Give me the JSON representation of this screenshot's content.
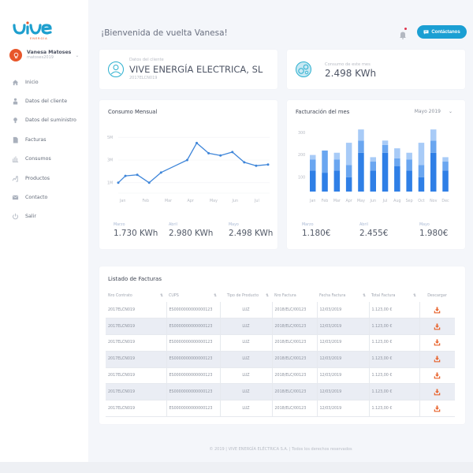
{
  "brand": {
    "name": "vive",
    "tagline": "ENERGÍA",
    "primary_color": "#1b9fd3",
    "accent_color": "#e8562a"
  },
  "user": {
    "name": "Vanesa Matoses",
    "handle": "matoses2019"
  },
  "sidebar": {
    "items": [
      {
        "label": "Inicio",
        "icon": "home-icon"
      },
      {
        "label": "Datos del cliente",
        "icon": "user-icon"
      },
      {
        "label": "Datos del suministro",
        "icon": "lightbulb-icon"
      },
      {
        "label": "Facturas",
        "icon": "document-icon"
      },
      {
        "label": "Consumos",
        "icon": "bar-chart-icon"
      },
      {
        "label": "Productos",
        "icon": "products-icon"
      },
      {
        "label": "Contacto",
        "icon": "mail-icon"
      },
      {
        "label": "Salir",
        "icon": "power-icon"
      }
    ]
  },
  "header": {
    "welcome": "¡Bienvenida de vuelta Vanesa!",
    "contact_button": "Contáctanos",
    "notifications": "bell-icon"
  },
  "client_card": {
    "label": "Datos del cliente",
    "name": "VIVE ENERGÍA ELECTRICA, SL",
    "contract": "2017ELCN019"
  },
  "consumption_card": {
    "label": "Consumo de este mes",
    "value": "2.498 KWh"
  },
  "monthly_consumption": {
    "title": "Consumo Mensual",
    "stats": [
      {
        "label": "Marzo",
        "value": "1.730 KWh"
      },
      {
        "label": "Abril",
        "value": "2.980 KWh"
      },
      {
        "label": "Mayo",
        "value": "2.498 KWh"
      }
    ]
  },
  "monthly_billing": {
    "title": "Facturación del mes",
    "period": "Mayo 2019",
    "stats": [
      {
        "label": "Marzo",
        "value": "1.180€"
      },
      {
        "label": "Abril",
        "value": "2.455€"
      },
      {
        "label": "Mayo",
        "value": "1.980€"
      }
    ]
  },
  "chart_data": [
    {
      "type": "line",
      "title": "Consumo Mensual",
      "xlabel": "",
      "ylabel": "",
      "x_tick_labels": [
        "Jan",
        "Feb",
        "Mar",
        "Apr",
        "May",
        "Jun",
        "Jul"
      ],
      "y_tick_labels": [
        "1M",
        "3M",
        "5M"
      ],
      "ylim": [
        0.5,
        5.5
      ],
      "grid": true,
      "color": "#3f86d9",
      "x": [
        0,
        0.3,
        0.8,
        1.3,
        1.8,
        2.4,
        2.9,
        3.3,
        3.8,
        4.3,
        4.8,
        5.3,
        5.8,
        6.3
      ],
      "values": [
        1.0,
        1.6,
        1.7,
        1.0,
        1.9,
        2.5,
        3.0,
        4.5,
        3.6,
        3.4,
        3.7,
        2.8,
        2.5,
        2.6
      ],
      "markers": [
        true,
        true,
        true,
        true,
        true,
        false,
        true,
        true,
        true,
        true,
        true,
        true,
        true,
        true
      ]
    },
    {
      "type": "bar",
      "stacked": true,
      "title": "Facturación del mes",
      "categories": [
        "Jan",
        "Feb",
        "Mar",
        "Apr",
        "May",
        "Jun",
        "Jul",
        "Aug",
        "Sep",
        "Oct",
        "Nov",
        "Dec"
      ],
      "y_tick_labels": [
        "100",
        "200",
        "300"
      ],
      "ylim": [
        35,
        330
      ],
      "series": [
        {
          "name": "base",
          "color": "#2f7fe6",
          "values": [
            130,
            120,
            130,
            100,
            210,
            130,
            210,
            150,
            130,
            100,
            210,
            130
          ]
        },
        {
          "name": "mid",
          "color": "#6aa6f0",
          "values": [
            50,
            100,
            50,
            55,
            55,
            40,
            35,
            35,
            50,
            55,
            55,
            40
          ]
        },
        {
          "name": "top",
          "color": "#a8cbf7",
          "values": [
            20,
            0,
            30,
            100,
            50,
            20,
            20,
            45,
            30,
            100,
            50,
            20
          ]
        }
      ]
    }
  ],
  "invoices": {
    "title": "Listado de Facturas",
    "columns": [
      {
        "label": "Nro Contrato",
        "sortable": true
      },
      {
        "label": "CUPS",
        "sortable": true
      },
      {
        "label": "Tipo de Producto",
        "sortable": true
      },
      {
        "label": "Nro Factura",
        "sortable": false
      },
      {
        "label": "Fecha Factura",
        "sortable": true
      },
      {
        "label": "Total Factura",
        "sortable": true
      },
      {
        "label": "Descargar",
        "sortable": false
      }
    ],
    "sort_glyph": "⇅",
    "rows": [
      {
        "contract": "2017ELCN019",
        "cups": "ES0000000000000123",
        "product": "LUZ",
        "invoice": "2018/ELC/00123",
        "date": "12/03/2019",
        "total": "1.123,00 €"
      },
      {
        "contract": "2017ELCN019",
        "cups": "ES0000000000000123",
        "product": "LUZ",
        "invoice": "2018/ELC/00123",
        "date": "12/03/2019",
        "total": "1.123,00 €"
      },
      {
        "contract": "2017ELCN019",
        "cups": "ES0000000000000123",
        "product": "LUZ",
        "invoice": "2018/ELC/00123",
        "date": "12/03/2019",
        "total": "1.123,00 €"
      },
      {
        "contract": "2017ELCN019",
        "cups": "ES0000000000000123",
        "product": "LUZ",
        "invoice": "2018/ELC/00123",
        "date": "12/03/2019",
        "total": "1.123,00 €"
      },
      {
        "contract": "2017ELCN019",
        "cups": "ES0000000000000123",
        "product": "LUZ",
        "invoice": "2018/ELC/00123",
        "date": "12/03/2019",
        "total": "1.123,00 €"
      },
      {
        "contract": "2017ELCN019",
        "cups": "ES0000000000000123",
        "product": "LUZ",
        "invoice": "2018/ELC/00123",
        "date": "12/03/2019",
        "total": "1.123,00 €"
      },
      {
        "contract": "2017ELCN019",
        "cups": "ES0000000000000123",
        "product": "LUZ",
        "invoice": "2018/ELC/00123",
        "date": "12/03/2019",
        "total": "1.123,00 €"
      }
    ]
  },
  "footer": {
    "text": "© 2019 | VIVE ENERGÍA ELÉCTRICA S.A. | Todos los derechos reservados"
  }
}
